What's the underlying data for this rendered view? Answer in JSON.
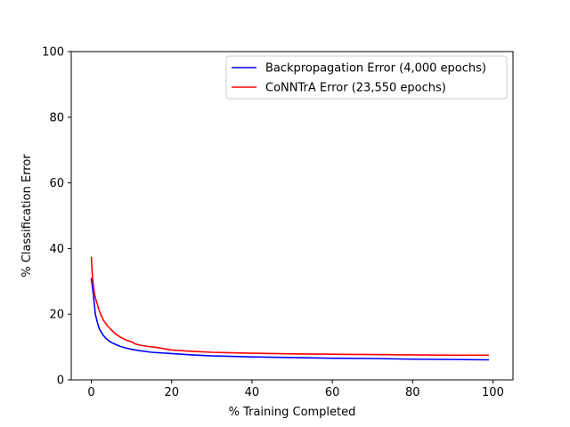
{
  "chart_data": {
    "type": "line",
    "title": "",
    "xlabel": "% Training Completed",
    "ylabel": "% Classification Error",
    "xlim": [
      -5,
      105
    ],
    "ylim": [
      0,
      100
    ],
    "xticks": [
      0,
      20,
      40,
      60,
      80,
      100
    ],
    "yticks": [
      0,
      20,
      40,
      60,
      80,
      100
    ],
    "grid": false,
    "legend_position": "top-right",
    "series": [
      {
        "name": "Backpropagation Error (4,000 epochs)",
        "color": "#0000ff",
        "x": [
          0,
          0.5,
          1,
          1.5,
          2,
          3,
          4,
          5,
          6,
          7,
          8,
          10,
          12,
          15,
          20,
          25,
          30,
          40,
          50,
          60,
          70,
          80,
          90,
          99
        ],
        "y": [
          31,
          26,
          20,
          17.5,
          15.5,
          13.5,
          12.2,
          11.4,
          10.8,
          10.3,
          9.9,
          9.3,
          8.9,
          8.4,
          8.0,
          7.6,
          7.3,
          7.0,
          6.8,
          6.6,
          6.5,
          6.3,
          6.2,
          6.1
        ]
      },
      {
        "name": "CoNNTrA Error (23,550 epochs)",
        "color": "#ff0000",
        "x": [
          0,
          0.3,
          0.7,
          1,
          1.5,
          2,
          2.5,
          3,
          4,
          5,
          6,
          7,
          8,
          9,
          10,
          11,
          12,
          14,
          16,
          18,
          20,
          25,
          30,
          40,
          50,
          60,
          70,
          80,
          90,
          99
        ],
        "y": [
          37.5,
          31,
          27,
          25,
          23,
          21,
          19.5,
          18.2,
          16.5,
          15.2,
          14,
          13.2,
          12.5,
          12,
          11.6,
          10.9,
          10.6,
          10.2,
          9.9,
          9.5,
          9.1,
          8.7,
          8.4,
          8.1,
          7.9,
          7.8,
          7.7,
          7.6,
          7.5,
          7.5
        ]
      }
    ]
  }
}
